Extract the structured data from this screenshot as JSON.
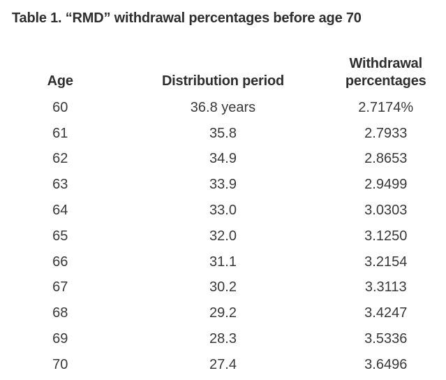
{
  "page": {
    "title": "Table 1. “RMD” withdrawal percentages before age 70"
  },
  "table": {
    "columns": [
      {
        "label": "Age"
      },
      {
        "label": "Distribution period"
      },
      {
        "label": "Withdrawal percentages"
      }
    ],
    "rows": [
      {
        "age": "60",
        "distribution_period": "36.8 years",
        "withdrawal_percentage": "2.7174%"
      },
      {
        "age": "61",
        "distribution_period": "35.8",
        "withdrawal_percentage": "2.7933"
      },
      {
        "age": "62",
        "distribution_period": "34.9",
        "withdrawal_percentage": "2.8653"
      },
      {
        "age": "63",
        "distribution_period": "33.9",
        "withdrawal_percentage": "2.9499"
      },
      {
        "age": "64",
        "distribution_period": "33.0",
        "withdrawal_percentage": "3.0303"
      },
      {
        "age": "65",
        "distribution_period": "32.0",
        "withdrawal_percentage": "3.1250"
      },
      {
        "age": "66",
        "distribution_period": "31.1",
        "withdrawal_percentage": "3.2154"
      },
      {
        "age": "67",
        "distribution_period": "30.2",
        "withdrawal_percentage": "3.3113"
      },
      {
        "age": "68",
        "distribution_period": "29.2",
        "withdrawal_percentage": "3.4247"
      },
      {
        "age": "69",
        "distribution_period": "28.3",
        "withdrawal_percentage": "3.5336"
      },
      {
        "age": "70",
        "distribution_period": "27.4",
        "withdrawal_percentage": "3.6496"
      }
    ]
  },
  "colors": {
    "background": "#ffffff",
    "title_text": "#2e2e2e",
    "body_text": "#383838"
  }
}
